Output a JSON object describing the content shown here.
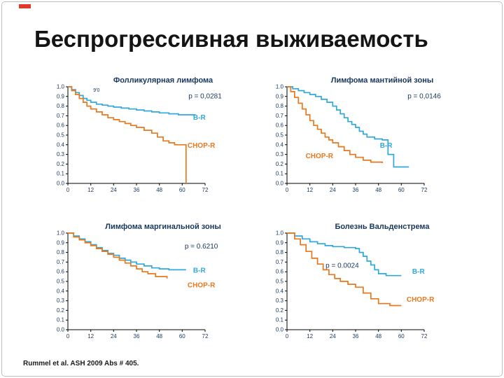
{
  "slide": {
    "title": "Беспрогрессивная выживаемость",
    "footer": "Rummel et al. ASH 2009 Abs # 405."
  },
  "colors": {
    "br": "#2fa8dc",
    "chop": "#e8781e",
    "ink": "#17375e",
    "accent_red": "#e03a2f"
  },
  "chart_data": [
    {
      "type": "line",
      "subtype": "kaplan-meier-step",
      "title": "Фолликулярная лимфома",
      "p_label": "p = 0,0281",
      "p_pos": [
        72,
        0.88
      ],
      "annotation": {
        "text": "9'0",
        "pos": [
          15,
          0.95
        ]
      },
      "xlim": [
        0,
        72
      ],
      "ylim": [
        0,
        1
      ],
      "xticks": [
        0,
        12,
        24,
        36,
        48,
        60,
        72
      ],
      "yticks": [
        0,
        0.1,
        0.2,
        0.3,
        0.4,
        0.5,
        0.6,
        0.7,
        0.8,
        0.9,
        1.0
      ],
      "series": [
        {
          "name": "B-R",
          "color": "#2fa8dc",
          "label_pos": [
            69,
            0.66
          ],
          "x": [
            0,
            2,
            4,
            6,
            8,
            10,
            12,
            15,
            18,
            21,
            24,
            28,
            32,
            36,
            40,
            44,
            48,
            53,
            58,
            67
          ],
          "y": [
            1.0,
            0.97,
            0.94,
            0.91,
            0.88,
            0.86,
            0.84,
            0.82,
            0.81,
            0.8,
            0.79,
            0.78,
            0.77,
            0.76,
            0.75,
            0.74,
            0.73,
            0.72,
            0.71,
            0.71
          ]
        },
        {
          "name": "CHOP-R",
          "color": "#e8781e",
          "label_pos": [
            70,
            0.37
          ],
          "x": [
            0,
            2,
            4,
            6,
            8,
            10,
            12,
            15,
            18,
            21,
            24,
            27,
            30,
            33,
            36,
            40,
            44,
            47,
            50,
            53,
            56,
            62
          ],
          "y": [
            1.0,
            0.96,
            0.92,
            0.88,
            0.84,
            0.8,
            0.77,
            0.74,
            0.71,
            0.68,
            0.66,
            0.64,
            0.62,
            0.6,
            0.58,
            0.55,
            0.52,
            0.48,
            0.44,
            0.42,
            0.4,
            0.0
          ]
        }
      ]
    },
    {
      "type": "line",
      "subtype": "kaplan-meier-step",
      "title": "Лимфома мантийной зоны",
      "p_label": "p = 0,0146",
      "p_pos": [
        72,
        0.88
      ],
      "xlim": [
        0,
        72
      ],
      "ylim": [
        0,
        1
      ],
      "xticks": [
        0,
        12,
        24,
        36,
        48,
        60,
        72
      ],
      "yticks": [
        0,
        0.1,
        0.2,
        0.3,
        0.4,
        0.5,
        0.6,
        0.7,
        0.8,
        0.9,
        1.0
      ],
      "series": [
        {
          "name": "B-R",
          "color": "#2fa8dc",
          "label_pos": [
            52,
            0.37
          ],
          "x": [
            0,
            3,
            6,
            9,
            12,
            15,
            18,
            21,
            24,
            26,
            28,
            30,
            32,
            34,
            36,
            38,
            40,
            42,
            46,
            50,
            53,
            56,
            64
          ],
          "y": [
            1.0,
            0.98,
            0.96,
            0.94,
            0.92,
            0.9,
            0.87,
            0.84,
            0.8,
            0.76,
            0.72,
            0.68,
            0.64,
            0.61,
            0.58,
            0.54,
            0.51,
            0.48,
            0.46,
            0.45,
            0.3,
            0.17,
            0.17
          ]
        },
        {
          "name": "CHOP-R",
          "color": "#e8781e",
          "label_pos": [
            17,
            0.26
          ],
          "x": [
            0,
            2,
            4,
            6,
            8,
            10,
            12,
            14,
            16,
            18,
            20,
            22,
            24,
            27,
            30,
            33,
            36,
            40,
            44,
            50
          ],
          "y": [
            1.0,
            0.95,
            0.89,
            0.83,
            0.77,
            0.71,
            0.65,
            0.6,
            0.56,
            0.52,
            0.48,
            0.45,
            0.42,
            0.38,
            0.34,
            0.3,
            0.27,
            0.24,
            0.22,
            0.21
          ]
        }
      ]
    },
    {
      "type": "line",
      "subtype": "kaplan-meier-step",
      "title": "Лимфома маргинальной зоны",
      "p_label": "p = 0.6210",
      "p_pos": [
        70,
        0.84
      ],
      "xlim": [
        0,
        72
      ],
      "ylim": [
        0,
        1
      ],
      "xticks": [
        0,
        12,
        24,
        36,
        48,
        60,
        72
      ],
      "yticks": [
        0,
        0.1,
        0.2,
        0.3,
        0.4,
        0.5,
        0.6,
        0.7,
        0.8,
        0.9,
        1.0
      ],
      "series": [
        {
          "name": "B-R",
          "color": "#2fa8dc",
          "label_pos": [
            69,
            0.59
          ],
          "x": [
            0,
            3,
            6,
            9,
            12,
            15,
            18,
            21,
            24,
            27,
            30,
            33,
            36,
            40,
            44,
            48,
            53,
            62
          ],
          "y": [
            1.0,
            0.97,
            0.94,
            0.91,
            0.88,
            0.85,
            0.82,
            0.79,
            0.77,
            0.74,
            0.72,
            0.7,
            0.68,
            0.66,
            0.64,
            0.63,
            0.62,
            0.62
          ]
        },
        {
          "name": "CHOP-R",
          "color": "#e8781e",
          "label_pos": [
            70,
            0.44
          ],
          "x": [
            0,
            3,
            6,
            9,
            12,
            15,
            18,
            21,
            24,
            27,
            30,
            33,
            36,
            39,
            42,
            46,
            52
          ],
          "y": [
            1.0,
            0.96,
            0.93,
            0.9,
            0.87,
            0.84,
            0.81,
            0.78,
            0.75,
            0.72,
            0.69,
            0.66,
            0.63,
            0.6,
            0.58,
            0.55,
            0.53
          ]
        }
      ]
    },
    {
      "type": "line",
      "subtype": "kaplan-meier-step",
      "title": "Болезнь Вальденстрема",
      "p_label": "p = 0.0024",
      "p_pos": [
        29,
        0.64
      ],
      "xlim": [
        0,
        72
      ],
      "ylim": [
        0,
        1
      ],
      "xticks": [
        0,
        12,
        24,
        36,
        48,
        60,
        72
      ],
      "yticks": [
        0,
        0.1,
        0.2,
        0.3,
        0.4,
        0.5,
        0.6,
        0.7,
        0.8,
        0.9,
        1.0
      ],
      "series": [
        {
          "name": "B-R",
          "color": "#2fa8dc",
          "label_pos": [
            69,
            0.58
          ],
          "x": [
            0,
            4,
            8,
            12,
            16,
            20,
            24,
            30,
            36,
            38,
            40,
            42,
            44,
            46,
            48,
            52,
            60
          ],
          "y": [
            1.0,
            0.97,
            0.94,
            0.91,
            0.89,
            0.87,
            0.86,
            0.85,
            0.84,
            0.8,
            0.76,
            0.71,
            0.67,
            0.62,
            0.58,
            0.56,
            0.56
          ]
        },
        {
          "name": "CHOP-R",
          "color": "#e8781e",
          "label_pos": [
            70,
            0.29
          ],
          "x": [
            0,
            4,
            7,
            10,
            13,
            16,
            19,
            22,
            25,
            28,
            32,
            36,
            40,
            44,
            48,
            54,
            60
          ],
          "y": [
            1.0,
            0.94,
            0.88,
            0.81,
            0.74,
            0.68,
            0.62,
            0.57,
            0.53,
            0.5,
            0.47,
            0.44,
            0.38,
            0.32,
            0.27,
            0.25,
            0.25
          ]
        }
      ]
    }
  ]
}
